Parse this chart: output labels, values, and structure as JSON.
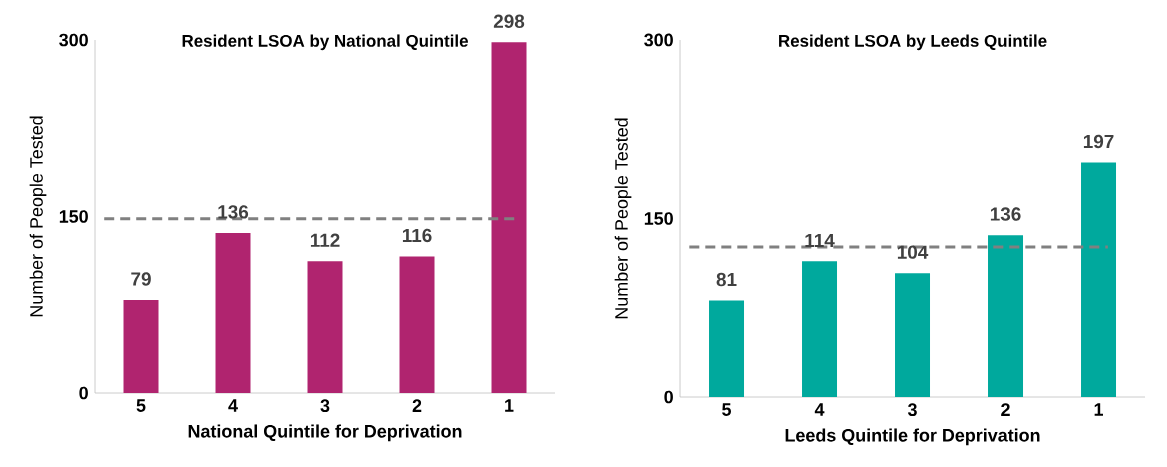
{
  "chart_data": [
    {
      "type": "bar",
      "title": "Resident LSOA by National Quintile",
      "xlabel": "National Quintile for Deprivation",
      "ylabel": "Number of People Tested",
      "categories": [
        "5",
        "4",
        "3",
        "2",
        "1"
      ],
      "values": [
        79,
        136,
        112,
        116,
        298
      ],
      "color": "#b0246f",
      "ylim": [
        0,
        300
      ],
      "yticks": [
        0,
        150,
        300
      ],
      "data_labels": true,
      "ref_lines": [
        {
          "axis": "y",
          "value": 148,
          "color": "#808080",
          "line_style": "dashed"
        }
      ]
    },
    {
      "type": "bar",
      "title": "Resident LSOA by Leeds Quintile",
      "xlabel": "Leeds Quintile for Deprivation",
      "ylabel": "Number of People Tested",
      "categories": [
        "5",
        "4",
        "3",
        "2",
        "1"
      ],
      "values": [
        81,
        114,
        104,
        136,
        197
      ],
      "color": "#00a99d",
      "ylim": [
        0,
        300
      ],
      "yticks": [
        0,
        150,
        300
      ],
      "data_labels": true,
      "ref_lines": [
        {
          "axis": "y",
          "value": 126,
          "color": "#808080",
          "line_style": "dashed"
        }
      ]
    }
  ]
}
